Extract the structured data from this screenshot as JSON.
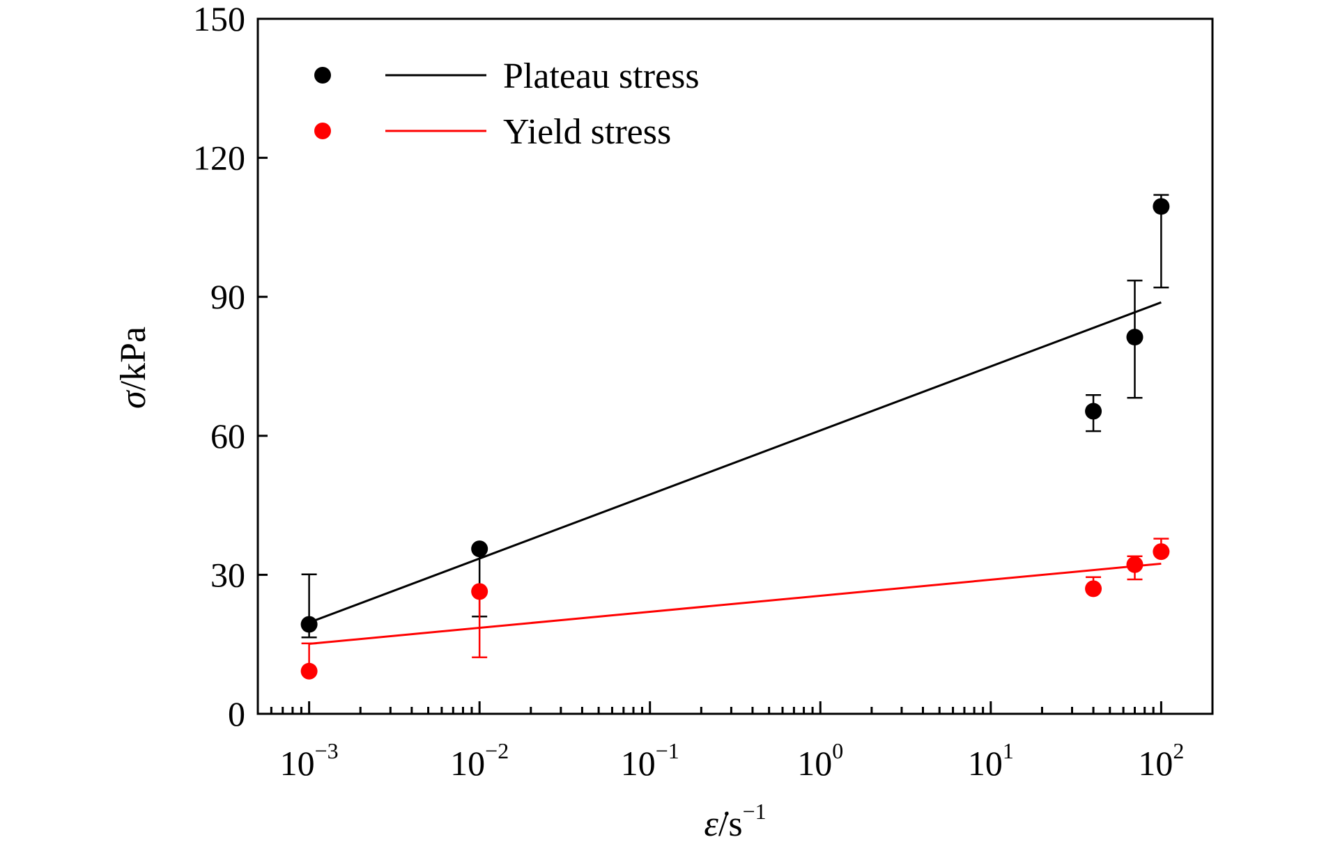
{
  "chart_data": {
    "type": "scatter",
    "x_scale": "log",
    "xlim": [
      0.0005,
      200
    ],
    "ylim": [
      0,
      150
    ],
    "x_ticks": [
      0.001,
      0.01,
      0.1,
      1,
      10,
      100
    ],
    "x_tick_labels": [
      {
        "base": "10",
        "exp": "−3"
      },
      {
        "base": "10",
        "exp": "−2"
      },
      {
        "base": "10",
        "exp": "−1"
      },
      {
        "base": "10",
        "exp": "0"
      },
      {
        "base": "10",
        "exp": "1"
      },
      {
        "base": "10",
        "exp": "2"
      }
    ],
    "y_ticks": [
      0,
      30,
      60,
      90,
      120,
      150
    ],
    "y_tick_labels": [
      "0",
      "30",
      "60",
      "90",
      "120",
      "150"
    ],
    "xlabel": {
      "symbol": "ε̇",
      "unit": "/s",
      "exp": "−1"
    },
    "ylabel": {
      "symbol": "σ",
      "unit": "/kPa"
    },
    "grid": false,
    "legend_position": "top-left",
    "series": [
      {
        "name": "Plateau stress",
        "color": "#000000",
        "x": [
          0.001,
          0.01,
          40,
          70,
          100
        ],
        "y": [
          19.3,
          35.6,
          65.3,
          81.3,
          109.5
        ],
        "err_low": [
          2.8,
          14.6,
          4.3,
          13.1,
          17.5
        ],
        "err_high": [
          10.8,
          0,
          3.5,
          12.2,
          2.5
        ],
        "fit": {
          "x": [
            0.001,
            100
          ],
          "y": [
            19.7,
            88.8
          ]
        }
      },
      {
        "name": "Yield stress",
        "color": "#ff0000",
        "x": [
          0.001,
          0.01,
          40,
          70,
          100
        ],
        "y": [
          9.2,
          26.4,
          27,
          32.2,
          35
        ],
        "err_low": [
          0,
          14.2,
          0,
          3.2,
          0
        ],
        "err_high": [
          6,
          0,
          2.5,
          1.8,
          2.8
        ],
        "fit": {
          "x": [
            0.001,
            100
          ],
          "y": [
            15.1,
            32.4
          ]
        }
      }
    ]
  }
}
